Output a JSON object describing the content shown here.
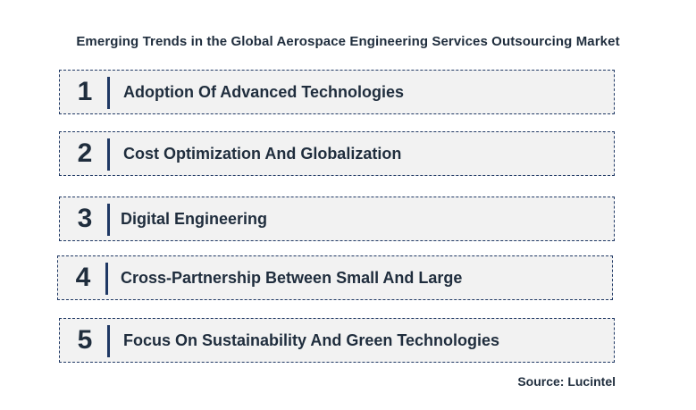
{
  "title": "Emerging Trends in the Global Aerospace Engineering Services Outsourcing Market",
  "trends": [
    {
      "number": "1",
      "label": "Adoption Of Advanced Technologies"
    },
    {
      "number": "2",
      "label": "Cost Optimization And Globalization"
    },
    {
      "number": "3",
      "label": "Digital Engineering"
    },
    {
      "number": "4",
      "label": "Cross-Partnership Between Small And Large"
    },
    {
      "number": "5",
      "label": "Focus On Sustainability And Green Technologies"
    }
  ],
  "source": "Source: Lucintel",
  "colors": {
    "row_background": "#f2f2f2",
    "accent": "#1f3864",
    "text": "#1f2d3d"
  }
}
